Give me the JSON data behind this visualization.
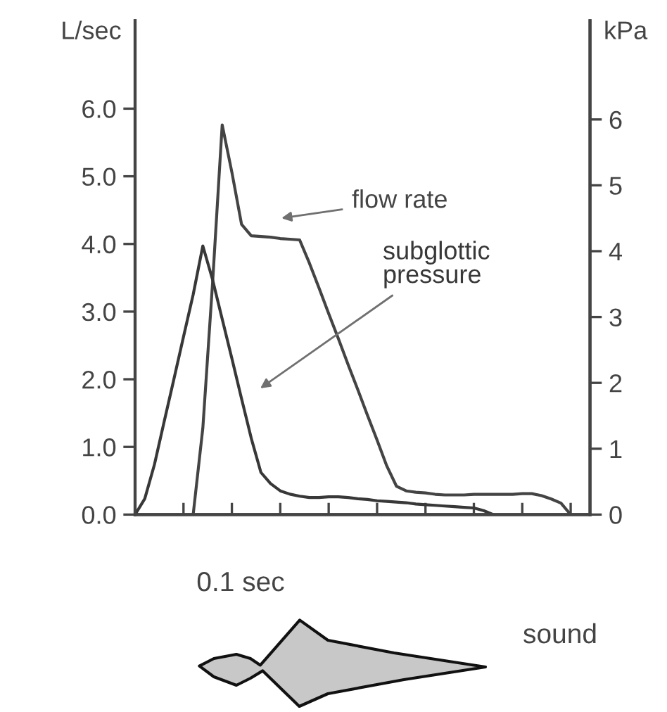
{
  "chart_data": {
    "type": "line",
    "ylabel": "L/sec",
    "y2label": "kPa",
    "categories": [
      null,
      null,
      null,
      null,
      null,
      null,
      null,
      null,
      null,
      null,
      null,
      null,
      null,
      null,
      null,
      null,
      null,
      null,
      null,
      null,
      null,
      null,
      null,
      null,
      null,
      null,
      null,
      null,
      null,
      null,
      null,
      null,
      null,
      null,
      null,
      null,
      null,
      null,
      null,
      null,
      null,
      null,
      null,
      null,
      null,
      null,
      null,
      null
    ],
    "series": [
      {
        "name": "flow rate",
        "color": "#444444",
        "values": [
          null,
          null,
          null,
          null,
          null,
          null,
          0,
          1.28,
          3.41,
          5.76,
          5.06,
          4.29,
          4.12,
          4.11,
          4.1,
          4.08,
          4.07,
          4.06,
          3.72,
          3.35,
          2.97,
          2.6,
          2.22,
          1.85,
          1.47,
          1.1,
          0.72,
          0.42,
          0.35,
          0.33,
          0.32,
          0.3,
          0.29,
          0.29,
          0.29,
          0.3,
          0.3,
          0.3,
          0.3,
          0.3,
          0.31,
          0.31,
          0.28,
          0.23,
          0.17,
          0,
          null,
          null
        ]
      },
      {
        "name": "subglottic pressure",
        "color": "#383838",
        "axis": "y2",
        "values": [
          0,
          0.24,
          0.76,
          1.41,
          2.05,
          2.7,
          3.34,
          4.08,
          3.57,
          2.97,
          2.37,
          1.76,
          1.16,
          0.64,
          0.47,
          0.36,
          0.31,
          0.28,
          0.26,
          0.26,
          0.27,
          0.27,
          0.26,
          0.24,
          0.23,
          0.21,
          0.2,
          0.19,
          0.18,
          0.16,
          0.15,
          0.14,
          0.13,
          0.12,
          0.11,
          0.1,
          0.06,
          0,
          null,
          null,
          null,
          null,
          null,
          null,
          null,
          null,
          null,
          null
        ]
      }
    ],
    "annotations": [
      "0.1 sec",
      "sound"
    ],
    "ylim": [
      0,
      7.3
    ],
    "y2lim": [
      0,
      7.5
    ],
    "yticks": [
      {
        "value": 0,
        "label": "0.0"
      },
      {
        "value": 1,
        "label": "1.0"
      },
      {
        "value": 2,
        "label": "2.0"
      },
      {
        "value": 3,
        "label": "3.0"
      },
      {
        "value": 4,
        "label": "4.0"
      },
      {
        "value": 5,
        "label": "5.0"
      },
      {
        "value": 6,
        "label": "6.0"
      }
    ],
    "y2ticks": [
      0,
      1,
      2,
      3,
      4,
      5,
      6
    ],
    "tick_labels": "y",
    "marker": "none",
    "line_style": "solid"
  }
}
